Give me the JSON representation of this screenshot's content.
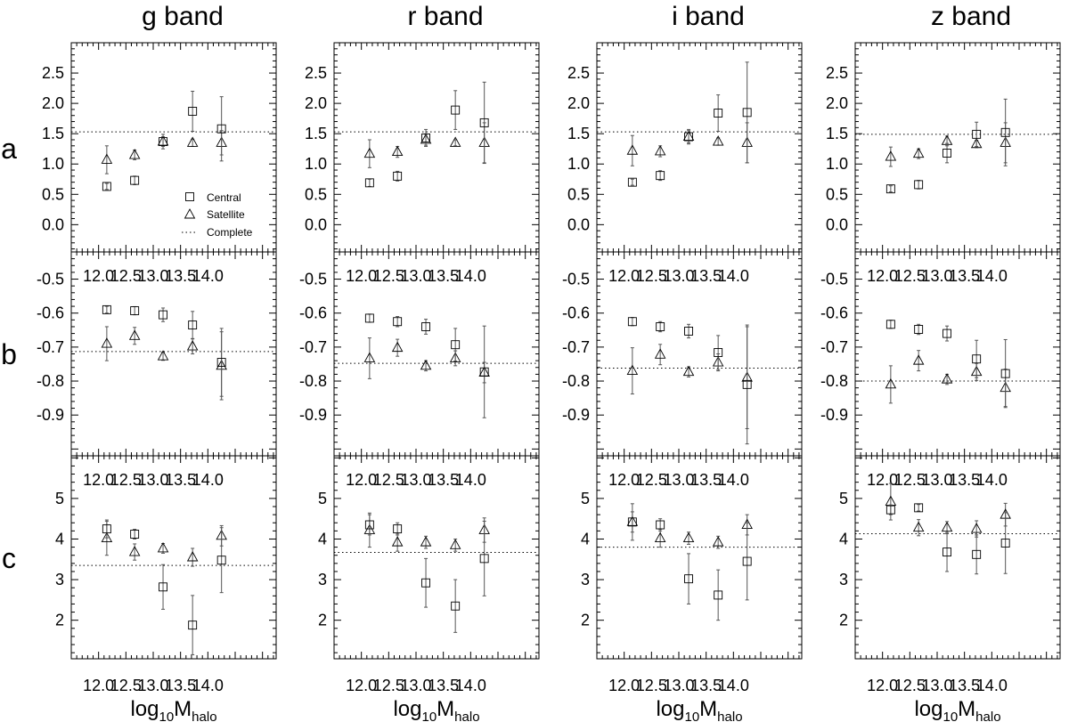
{
  "chart_data": {
    "type": "scatter",
    "columns": [
      "g band",
      "r band",
      "i band",
      "z band"
    ],
    "rows": [
      "a",
      "b",
      "c"
    ],
    "x_tick_labels": [
      "12.0",
      "12.5",
      "13.0",
      "13.5",
      "14.0"
    ],
    "x_ticks": [
      12.0,
      12.5,
      13.0,
      13.5,
      14.0
    ],
    "xlim": [
      11.5,
      15.25
    ],
    "xlabel": {
      "main": "log",
      "sub1": "10",
      "mid": "M",
      "sub2": "halo"
    },
    "legend": {
      "central": "Central",
      "satellite": "Satellite",
      "complete": "Complete"
    },
    "x_central": [
      12.15,
      12.66,
      13.18,
      13.72,
      14.25
    ],
    "x_satellite": [
      12.15,
      12.66,
      13.18,
      13.72,
      14.25
    ],
    "panel_rows": [
      {
        "label": "a",
        "ylim": [
          -0.45,
          3.0
        ],
        "yticks": [
          0.0,
          0.5,
          1.0,
          1.5,
          2.0,
          2.5
        ],
        "ytick_labels": [
          "0.0",
          "0.5",
          "1.0",
          "1.5",
          "2.0",
          "2.5"
        ],
        "show_top_ticklabels": false,
        "panels": [
          {
            "complete": 1.53,
            "central": [
              [
                0.63,
                0.05
              ],
              [
                0.73,
                0.07
              ],
              [
                1.37,
                0.12
              ],
              [
                1.87,
                0.33
              ],
              [
                1.58,
                0.53
              ]
            ],
            "satellite": [
              [
                1.07,
                0.23
              ],
              [
                1.15,
                0.08
              ],
              [
                1.37,
                0.08
              ],
              [
                1.35,
                0.06
              ],
              [
                1.35,
                0.2
              ]
            ]
          },
          {
            "complete": 1.53,
            "central": [
              [
                0.69,
                0.06
              ],
              [
                0.8,
                0.08
              ],
              [
                1.43,
                0.14
              ],
              [
                1.89,
                0.32
              ],
              [
                1.68,
                0.67
              ]
            ],
            "satellite": [
              [
                1.17,
                0.23
              ],
              [
                1.2,
                0.09
              ],
              [
                1.4,
                0.09
              ],
              [
                1.35,
                0.05
              ],
              [
                1.35,
                0.33
              ]
            ]
          },
          {
            "complete": 1.53,
            "central": [
              [
                0.7,
                0.05
              ],
              [
                0.81,
                0.08
              ],
              [
                1.45,
                0.12
              ],
              [
                1.84,
                0.3
              ],
              [
                1.85,
                0.83
              ]
            ],
            "satellite": [
              [
                1.22,
                0.25
              ],
              [
                1.21,
                0.09
              ],
              [
                1.45,
                0.1
              ],
              [
                1.37,
                0.06
              ],
              [
                1.35,
                0.33
              ]
            ]
          },
          {
            "complete": 1.49,
            "central": [
              [
                0.59,
                0.05
              ],
              [
                0.66,
                0.07
              ],
              [
                1.18,
                0.16
              ],
              [
                1.49,
                0.2
              ],
              [
                1.52,
                0.55
              ]
            ],
            "satellite": [
              [
                1.12,
                0.16
              ],
              [
                1.17,
                0.08
              ],
              [
                1.38,
                0.08
              ],
              [
                1.33,
                0.06
              ],
              [
                1.35,
                0.33
              ]
            ]
          }
        ]
      },
      {
        "label": "b",
        "ylim": [
          -1.02,
          -0.42
        ],
        "yticks": [
          -0.9,
          -0.8,
          -0.7,
          -0.6,
          -0.5
        ],
        "ytick_labels": [
          "-0.9",
          "-0.8",
          "-0.7",
          "-0.6",
          "-0.5"
        ],
        "show_top_ticklabels": true,
        "panels": [
          {
            "complete": -0.713,
            "central": [
              [
                -0.59,
                0.01
              ],
              [
                -0.593,
                0.012
              ],
              [
                -0.605,
                0.02
              ],
              [
                -0.635,
                0.04
              ],
              [
                -0.745,
                0.1
              ]
            ],
            "satellite": [
              [
                -0.69,
                0.05
              ],
              [
                -0.667,
                0.025
              ],
              [
                -0.727,
                0.012
              ],
              [
                -0.698,
                0.022
              ],
              [
                -0.755,
                0.1
              ]
            ]
          },
          {
            "complete": -0.748,
            "central": [
              [
                -0.615,
                0.012
              ],
              [
                -0.625,
                0.015
              ],
              [
                -0.64,
                0.022
              ],
              [
                -0.693,
                0.048
              ],
              [
                -0.773,
                0.135
              ]
            ],
            "satellite": [
              [
                -0.733,
                0.06
              ],
              [
                -0.702,
                0.025
              ],
              [
                -0.755,
                0.015
              ],
              [
                -0.733,
                0.022
              ],
              [
                -0.775,
                0.03
              ]
            ]
          },
          {
            "complete": -0.762,
            "central": [
              [
                -0.625,
                0.012
              ],
              [
                -0.64,
                0.015
              ],
              [
                -0.653,
                0.02
              ],
              [
                -0.716,
                0.05
              ],
              [
                -0.81,
                0.175
              ]
            ],
            "satellite": [
              [
                -0.77,
                0.068
              ],
              [
                -0.722,
                0.03
              ],
              [
                -0.773,
                0.015
              ],
              [
                -0.745,
                0.025
              ],
              [
                -0.79,
                0.15
              ]
            ]
          },
          {
            "complete": -0.8,
            "central": [
              [
                -0.633,
                0.012
              ],
              [
                -0.648,
                0.015
              ],
              [
                -0.66,
                0.022
              ],
              [
                -0.735,
                0.055
              ],
              [
                -0.778,
                0.1
              ]
            ],
            "satellite": [
              [
                -0.81,
                0.055
              ],
              [
                -0.74,
                0.03
              ],
              [
                -0.795,
                0.015
              ],
              [
                -0.773,
                0.025
              ],
              [
                -0.82,
                0.055
              ]
            ]
          }
        ]
      },
      {
        "label": "c",
        "ylim": [
          1.05,
          6.05
        ],
        "yticks": [
          2,
          3,
          4,
          5
        ],
        "ytick_labels": [
          "2",
          "3",
          "4",
          "5"
        ],
        "show_top_ticklabels": true,
        "panels": [
          {
            "complete": 3.35,
            "central": [
              [
                4.25,
                0.22
              ],
              [
                4.12,
                0.12
              ],
              [
                2.82,
                0.55
              ],
              [
                1.88,
                0.73
              ],
              [
                3.48,
                0.8
              ]
            ],
            "satellite": [
              [
                4.02,
                0.42
              ],
              [
                3.68,
                0.2
              ],
              [
                3.77,
                0.12
              ],
              [
                3.55,
                0.22
              ],
              [
                4.08,
                0.25
              ]
            ]
          },
          {
            "complete": 3.67,
            "central": [
              [
                4.35,
                0.25
              ],
              [
                4.25,
                0.15
              ],
              [
                2.92,
                0.6
              ],
              [
                2.35,
                0.65
              ],
              [
                3.52,
                0.92
              ]
            ],
            "satellite": [
              [
                4.22,
                0.42
              ],
              [
                3.92,
                0.22
              ],
              [
                3.92,
                0.15
              ],
              [
                3.85,
                0.15
              ],
              [
                4.22,
                0.3
              ]
            ]
          },
          {
            "complete": 3.8,
            "central": [
              [
                4.42,
                0.25
              ],
              [
                4.35,
                0.15
              ],
              [
                3.02,
                0.62
              ],
              [
                2.62,
                0.62
              ],
              [
                3.45,
                0.95
              ]
            ],
            "satellite": [
              [
                4.42,
                0.45
              ],
              [
                4.02,
                0.22
              ],
              [
                4.02,
                0.15
              ],
              [
                3.92,
                0.15
              ],
              [
                4.35,
                0.25
              ]
            ]
          },
          {
            "complete": 4.13,
            "central": [
              [
                4.72,
                0.12
              ],
              [
                4.77,
                0.08
              ],
              [
                3.68,
                0.48
              ],
              [
                3.62,
                0.48
              ],
              [
                3.9,
                0.75
              ]
            ],
            "satellite": [
              [
                4.92,
                0.45
              ],
              [
                4.28,
                0.2
              ],
              [
                4.28,
                0.15
              ],
              [
                4.25,
                0.2
              ],
              [
                4.6,
                0.28
              ]
            ]
          }
        ]
      }
    ]
  }
}
